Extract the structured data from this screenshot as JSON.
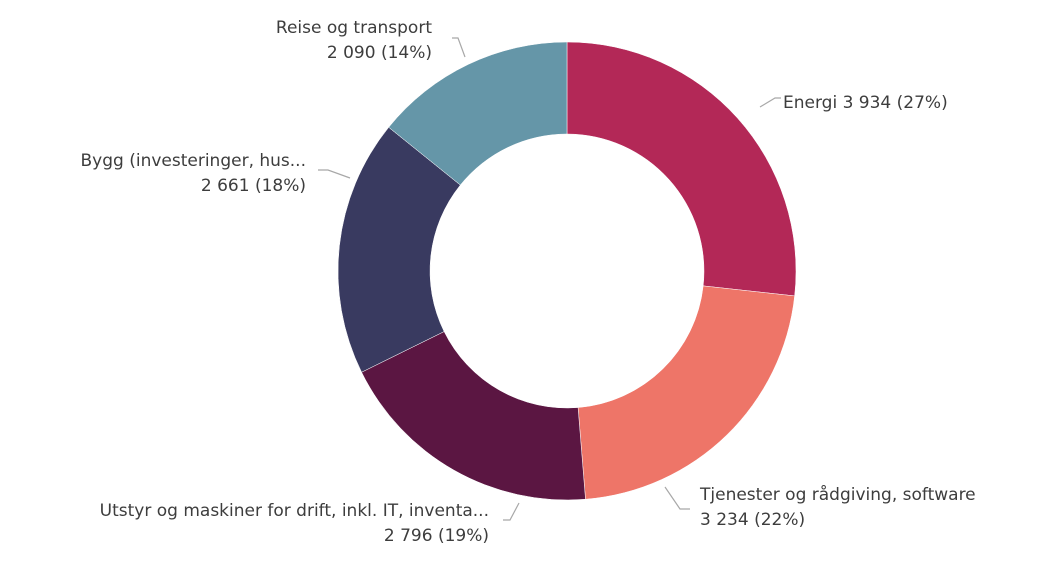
{
  "chart_data": {
    "type": "pie",
    "variant": "donut",
    "title": "",
    "slices": [
      {
        "label": "Energi",
        "value": 3934,
        "value_text": "3 934",
        "percent_text": "27%",
        "color": "#b32857",
        "label_lines": [
          "Energi 3 934 (27%)"
        ]
      },
      {
        "label": "Tjenester og rådgiving, software",
        "value": 3234,
        "value_text": "3 234",
        "percent_text": "22%",
        "color": "#ee7568",
        "label_lines": [
          "Tjenester og rådgiving, software",
          "3 234 (22%)"
        ]
      },
      {
        "label": "Utstyr og maskiner for drift, inkl. IT, inventa...",
        "value": 2796,
        "value_text": "2 796",
        "percent_text": "19%",
        "color": "#5b1642",
        "label_lines": [
          "Utstyr og maskiner for drift, inkl. IT, inventa...",
          "2 796 (19%)"
        ]
      },
      {
        "label": "Bygg (investeringer, hus...",
        "value": 2661,
        "value_text": "2 661",
        "percent_text": "18%",
        "color": "#393a60",
        "label_lines": [
          "Bygg (investeringer, hus...",
          "2 661 (18%)"
        ]
      },
      {
        "label": "Reise og transport",
        "value": 2090,
        "value_text": "2 090",
        "percent_text": "14%",
        "color": "#6596a8",
        "label_lines": [
          "Reise og transport",
          "2 090 (14%)"
        ]
      }
    ]
  }
}
